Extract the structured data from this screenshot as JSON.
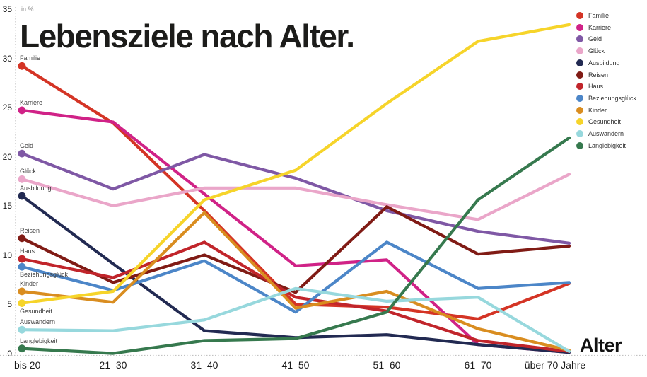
{
  "chart_data": {
    "type": "line",
    "title": "Lebensziele nach Alter.",
    "y_unit": "in %",
    "xlabel": "Alter",
    "ylabel": "",
    "ylim": [
      0,
      35
    ],
    "y_ticks": [
      0,
      5,
      10,
      15,
      20,
      25,
      30,
      35
    ],
    "grid": "dotted axis lines only",
    "legend_position": "top-right",
    "axis_color": "#c2c2c2",
    "categories": [
      "bis 20",
      "21–30",
      "31–40",
      "41–50",
      "51–60",
      "61–70",
      "über 70 Jahre"
    ],
    "series": [
      {
        "name": "Familie",
        "color": "#d43425",
        "label_below": false,
        "values": [
          29.3,
          23.5,
          14.6,
          5.1,
          4.8,
          3.6,
          7.2
        ]
      },
      {
        "name": "Karriere",
        "color": "#d02287",
        "label_below": false,
        "values": [
          24.8,
          23.6,
          16.3,
          9.0,
          9.6,
          1.0,
          0.2
        ]
      },
      {
        "name": "Geld",
        "color": "#7f58a5",
        "label_below": false,
        "values": [
          20.4,
          16.8,
          20.3,
          17.9,
          14.6,
          12.5,
          11.3
        ]
      },
      {
        "name": "Glück",
        "color": "#eaa6c9",
        "label_below": false,
        "values": [
          17.8,
          15.1,
          16.9,
          16.9,
          15.2,
          13.7,
          18.3
        ]
      },
      {
        "name": "Ausbildung",
        "color": "#222a52",
        "label_below": false,
        "values": [
          16.1,
          9.2,
          2.4,
          1.7,
          2.0,
          1.0,
          0.2
        ]
      },
      {
        "name": "Reisen",
        "color": "#801b15",
        "label_below": false,
        "values": [
          11.8,
          7.3,
          10.1,
          6.3,
          15.0,
          10.2,
          11.0
        ]
      },
      {
        "name": "Haus",
        "color": "#c1252b",
        "label_below": false,
        "values": [
          9.7,
          7.8,
          11.4,
          5.8,
          4.4,
          1.4,
          0.3
        ]
      },
      {
        "name": "Beziehungsglück",
        "color": "#4c86c8",
        "label_below": true,
        "values": [
          8.9,
          6.5,
          9.5,
          4.3,
          11.4,
          6.7,
          7.3
        ]
      },
      {
        "name": "Kinder",
        "color": "#d98d20",
        "label_below": false,
        "values": [
          6.4,
          5.3,
          14.4,
          4.7,
          6.4,
          2.6,
          0.4
        ]
      },
      {
        "name": "Gesundheit",
        "color": "#f6d42a",
        "label_below": true,
        "values": [
          5.2,
          6.4,
          15.7,
          18.7,
          25.5,
          31.8,
          33.5
        ]
      },
      {
        "name": "Auswandern",
        "color": "#97d8dd",
        "label_below": false,
        "values": [
          2.5,
          2.4,
          3.5,
          6.7,
          5.4,
          5.8,
          0.3
        ]
      },
      {
        "name": "Langlebigkeit",
        "color": "#36794e",
        "label_below": false,
        "values": [
          0.6,
          0.1,
          1.4,
          1.6,
          4.3,
          15.7,
          22.0
        ]
      }
    ]
  }
}
